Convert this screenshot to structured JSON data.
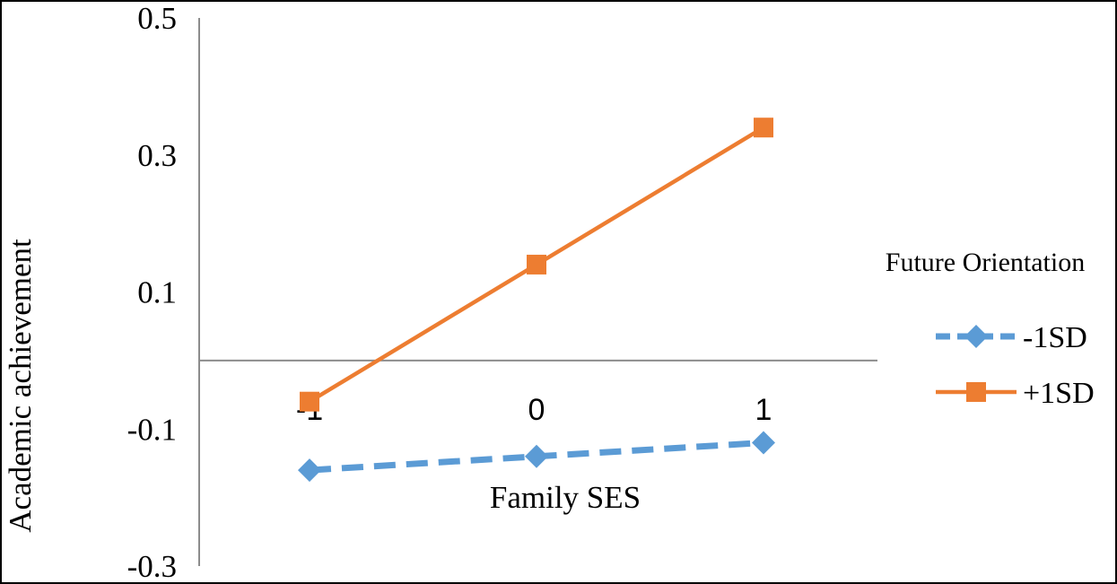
{
  "chart_data": {
    "type": "line",
    "xlabel": "Family SES",
    "ylabel": "Academic achievement",
    "legend_title": "Future Orientation",
    "legend_placement": "right",
    "x": [
      -1,
      0,
      1
    ],
    "x_ticks": [
      "-1",
      "0",
      "1"
    ],
    "y_ticks": [
      "0.5",
      "0.3",
      "0.1",
      "-0.1",
      "-0.3"
    ],
    "ylim": [
      -0.3,
      0.5
    ],
    "grid": false,
    "series": [
      {
        "name": "-1SD",
        "values": [
          -0.16,
          -0.14,
          -0.12
        ],
        "color": "#5B9BD5",
        "line_style": "dashed",
        "marker": "diamond"
      },
      {
        "name": "+1SD",
        "values": [
          -0.06,
          0.14,
          0.34
        ],
        "color": "#ED7D31",
        "line_style": "solid",
        "marker": "square"
      }
    ]
  }
}
